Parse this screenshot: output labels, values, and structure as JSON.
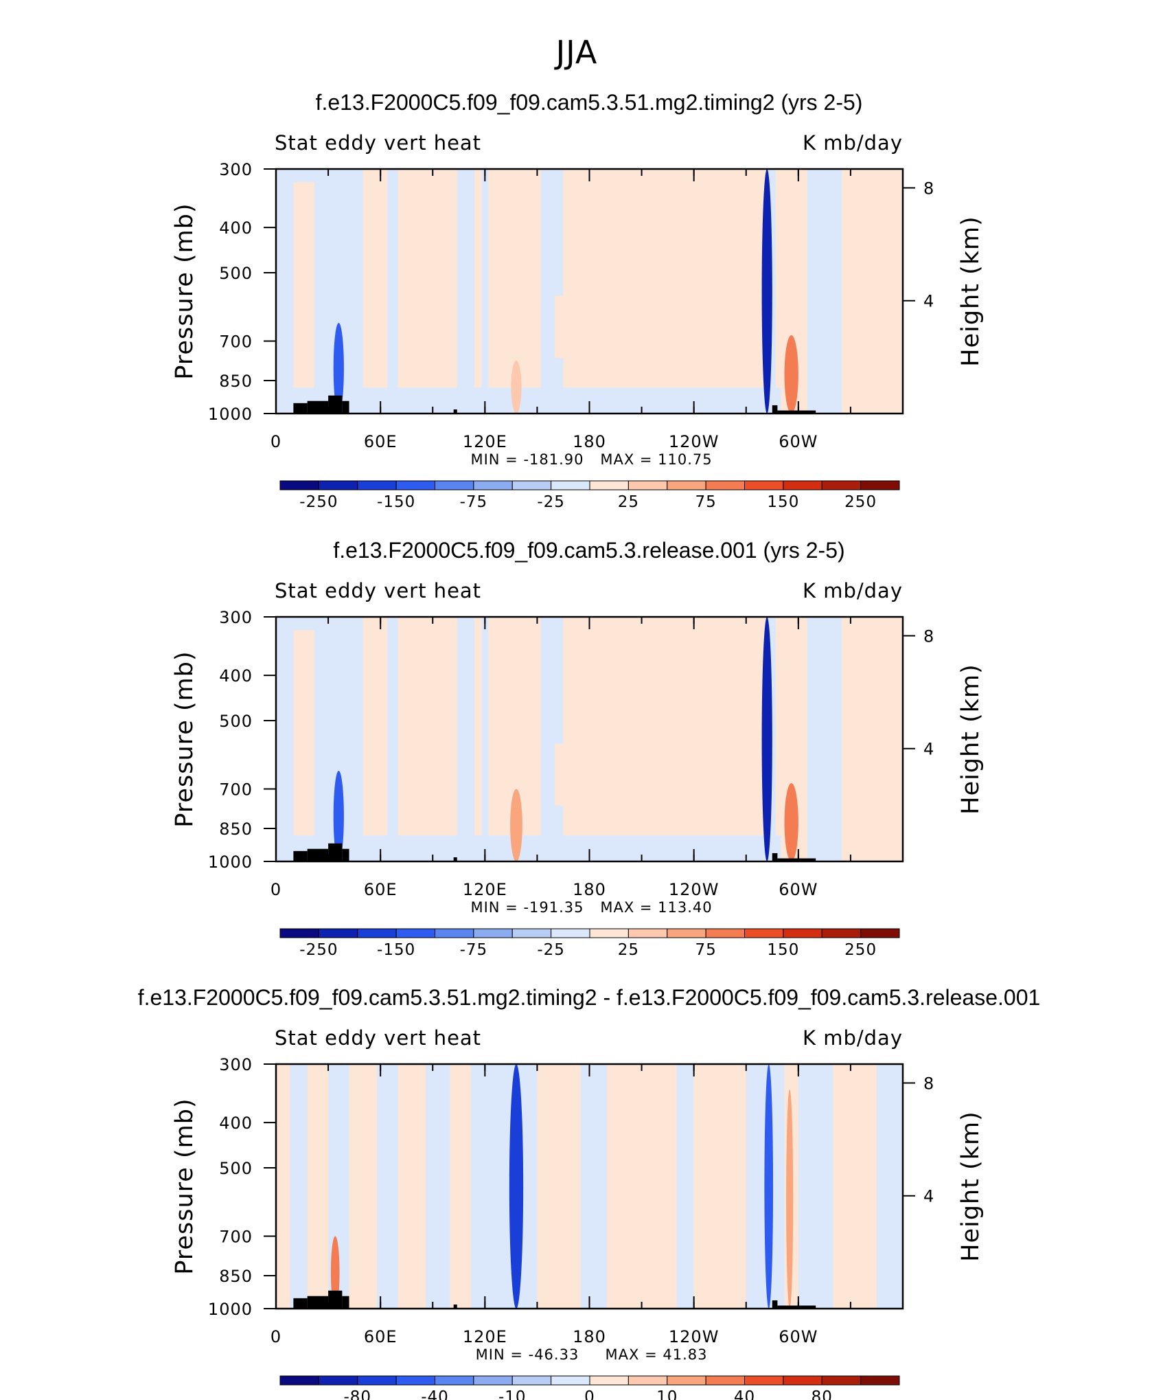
{
  "figure_title": "JJA",
  "chart_data": [
    {
      "type": "contour",
      "title": "f.e13.F2000C5.f09_f09.cam5.3.51.mg2.timing2 (yrs 2-5)",
      "left_label": "Stat eddy vert heat",
      "right_label": "K mb/day",
      "ylabel": "Pressure (mb)",
      "ylabel_right": "Height (km)",
      "x_ticks": [
        "0",
        "60E",
        "120E",
        "180",
        "120W",
        "60W"
      ],
      "x_tick_lons": [
        0,
        60,
        120,
        180,
        240,
        300
      ],
      "xlim": [
        0,
        360
      ],
      "y_ticks": [
        "300",
        "400",
        "500",
        "700",
        "850",
        "1000"
      ],
      "y_tick_values": [
        300,
        400,
        500,
        700,
        850,
        1000
      ],
      "ylim": [
        1000,
        300
      ],
      "height_ticks": [
        "8",
        "4"
      ],
      "height_tick_values": [
        8,
        4
      ],
      "min_label": "MIN = -181.90",
      "max_label": "MAX = 110.75",
      "min": -181.9,
      "max": 110.75,
      "colorbar_labels": [
        "-250",
        "-150",
        "-75",
        "-25",
        "25",
        "75",
        "150",
        "250"
      ],
      "colorbar_colors": [
        "#0a0a80",
        "#0d22b0",
        "#1a3ed8",
        "#2f5cf0",
        "#5a84f0",
        "#8cacf2",
        "#b7cdf5",
        "#dbe8fb",
        "#fde6d6",
        "#fcc9ae",
        "#f9a67f",
        "#f47c52",
        "#ec4f28",
        "#d32e12",
        "#ab1d0b",
        "#7d0d05"
      ],
      "features": [
        {
          "lon": 36,
          "p_top": 640,
          "value": -100,
          "width": 6
        },
        {
          "lon": 282,
          "p_top": 300,
          "value": -180,
          "width": 6
        },
        {
          "lon": 296,
          "p_top": 680,
          "value": 75,
          "width": 8
        },
        {
          "lon": 138,
          "p_top": 770,
          "value": 40,
          "width": 6
        }
      ]
    },
    {
      "type": "contour",
      "title": "f.e13.F2000C5.f09_f09.cam5.3.release.001 (yrs 2-5)",
      "left_label": "Stat eddy vert heat",
      "right_label": "K mb/day",
      "ylabel": "Pressure (mb)",
      "ylabel_right": "Height (km)",
      "x_ticks": [
        "0",
        "60E",
        "120E",
        "180",
        "120W",
        "60W"
      ],
      "x_tick_lons": [
        0,
        60,
        120,
        180,
        240,
        300
      ],
      "xlim": [
        0,
        360
      ],
      "y_ticks": [
        "300",
        "400",
        "500",
        "700",
        "850",
        "1000"
      ],
      "y_tick_values": [
        300,
        400,
        500,
        700,
        850,
        1000
      ],
      "ylim": [
        1000,
        300
      ],
      "height_ticks": [
        "8",
        "4"
      ],
      "height_tick_values": [
        8,
        4
      ],
      "min_label": "MIN = -191.35",
      "max_label": "MAX = 113.40",
      "min": -191.35,
      "max": 113.4,
      "colorbar_labels": [
        "-250",
        "-150",
        "-75",
        "-25",
        "25",
        "75",
        "150",
        "250"
      ],
      "colorbar_colors": [
        "#0a0a80",
        "#0d22b0",
        "#1a3ed8",
        "#2f5cf0",
        "#5a84f0",
        "#8cacf2",
        "#b7cdf5",
        "#dbe8fb",
        "#fde6d6",
        "#fcc9ae",
        "#f9a67f",
        "#f47c52",
        "#ec4f28",
        "#d32e12",
        "#ab1d0b",
        "#7d0d05"
      ],
      "features": [
        {
          "lon": 36,
          "p_top": 640,
          "value": -100,
          "width": 6
        },
        {
          "lon": 282,
          "p_top": 300,
          "value": -190,
          "width": 6
        },
        {
          "lon": 296,
          "p_top": 680,
          "value": 75,
          "width": 8
        },
        {
          "lon": 138,
          "p_top": 700,
          "value": 50,
          "width": 7
        }
      ]
    },
    {
      "type": "contour",
      "title": "f.e13.F2000C5.f09_f09.cam5.3.51.mg2.timing2 - f.e13.F2000C5.f09_f09.cam5.3.release.001",
      "left_label": "Stat eddy vert heat",
      "right_label": "K mb/day",
      "ylabel": "Pressure (mb)",
      "ylabel_right": "Height (km)",
      "x_ticks": [
        "0",
        "60E",
        "120E",
        "180",
        "120W",
        "60W"
      ],
      "x_tick_lons": [
        0,
        60,
        120,
        180,
        240,
        300
      ],
      "xlim": [
        0,
        360
      ],
      "y_ticks": [
        "300",
        "400",
        "500",
        "700",
        "850",
        "1000"
      ],
      "y_tick_values": [
        300,
        400,
        500,
        700,
        850,
        1000
      ],
      "ylim": [
        1000,
        300
      ],
      "height_ticks": [
        "8",
        "4"
      ],
      "height_tick_values": [
        8,
        4
      ],
      "min_label": "MIN = -46.33",
      "max_label": "MAX = 41.83",
      "min": -46.33,
      "max": 41.83,
      "colorbar_labels": [
        "-80",
        "-40",
        "-10",
        "0",
        "10",
        "40",
        "80"
      ],
      "colorbar_colors": [
        "#0a0a80",
        "#0d22b0",
        "#1a3ed8",
        "#2f5cf0",
        "#5a84f0",
        "#8cacf2",
        "#b7cdf5",
        "#dbe8fb",
        "#fde6d6",
        "#fcc9ae",
        "#f9a67f",
        "#f47c52",
        "#ec4f28",
        "#d32e12",
        "#ab1d0b",
        "#7d0d05"
      ],
      "features": [
        {
          "lon": 138,
          "p_top": 300,
          "value": -45,
          "width": 8
        },
        {
          "lon": 283,
          "p_top": 300,
          "value": -40,
          "width": 5
        },
        {
          "lon": 34,
          "p_top": 700,
          "value": 20,
          "width": 5
        },
        {
          "lon": 295,
          "p_top": 340,
          "value": 15,
          "width": 4
        }
      ]
    }
  ]
}
